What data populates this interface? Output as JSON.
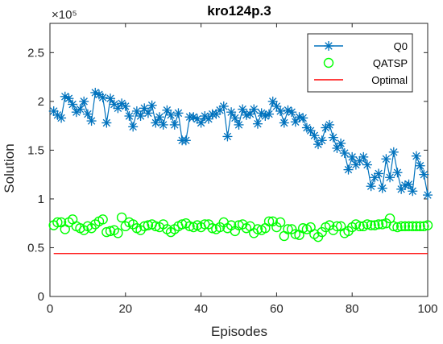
{
  "chart_data": {
    "type": "scatter",
    "title": "kro124p.3",
    "xlabel": "Episodes",
    "ylabel": "Solution",
    "exponent_label": "×10⁵",
    "xlim": [
      0,
      100
    ],
    "ylim": [
      0,
      2.8
    ],
    "xticks": [
      0,
      20,
      40,
      60,
      80,
      100
    ],
    "yticks": [
      0,
      0.5,
      1,
      1.5,
      2,
      2.5
    ],
    "xtick_labels": [
      "0",
      "20",
      "40",
      "60",
      "80",
      "100"
    ],
    "ytick_labels": [
      "0",
      "0.5",
      "1",
      "1.5",
      "2",
      "2.5"
    ],
    "grid": false,
    "legend_position": "top-right",
    "x": [
      1,
      2,
      3,
      4,
      5,
      6,
      7,
      8,
      9,
      10,
      11,
      12,
      13,
      14,
      15,
      16,
      17,
      18,
      19,
      20,
      21,
      22,
      23,
      24,
      25,
      26,
      27,
      28,
      29,
      30,
      31,
      32,
      33,
      34,
      35,
      36,
      37,
      38,
      39,
      40,
      41,
      42,
      43,
      44,
      45,
      46,
      47,
      48,
      49,
      50,
      51,
      52,
      53,
      54,
      55,
      56,
      57,
      58,
      59,
      60,
      61,
      62,
      63,
      64,
      65,
      66,
      67,
      68,
      69,
      70,
      71,
      72,
      73,
      74,
      75,
      76,
      77,
      78,
      79,
      80,
      81,
      82,
      83,
      84,
      85,
      86,
      87,
      88,
      89,
      90,
      91,
      92,
      93,
      94,
      95,
      96,
      97,
      98,
      99,
      100
    ],
    "series": [
      {
        "name": "Q0",
        "marker": "asterisk",
        "line": true,
        "color": "#0072BD",
        "values": [
          1.9,
          1.86,
          1.83,
          2.05,
          2.03,
          1.97,
          1.89,
          1.92,
          2.0,
          1.87,
          1.8,
          2.09,
          2.07,
          2.04,
          1.78,
          2.03,
          1.97,
          1.93,
          1.98,
          1.95,
          1.85,
          1.74,
          1.9,
          1.85,
          1.93,
          1.88,
          1.96,
          1.78,
          1.84,
          1.76,
          1.91,
          1.86,
          1.76,
          1.88,
          1.6,
          1.6,
          1.84,
          1.84,
          1.82,
          1.78,
          1.85,
          1.82,
          1.87,
          1.87,
          1.91,
          1.95,
          1.64,
          1.89,
          1.83,
          1.76,
          1.92,
          1.86,
          1.87,
          1.92,
          1.77,
          1.88,
          1.85,
          1.87,
          2.0,
          1.95,
          1.9,
          1.78,
          1.91,
          1.89,
          1.79,
          1.84,
          1.83,
          1.73,
          1.7,
          1.65,
          1.56,
          1.6,
          1.73,
          1.76,
          1.63,
          1.52,
          1.57,
          1.47,
          1.3,
          1.43,
          1.35,
          1.39,
          1.43,
          1.35,
          1.13,
          1.22,
          1.26,
          1.11,
          1.41,
          1.22,
          1.48,
          1.27,
          1.1,
          1.14,
          1.15,
          1.08,
          1.44,
          1.34,
          1.25,
          1.04
        ]
      },
      {
        "name": "QATSP",
        "marker": "circle",
        "line": false,
        "color": "#00FF00",
        "values": [
          0.73,
          0.76,
          0.76,
          0.69,
          0.76,
          0.79,
          0.72,
          0.7,
          0.68,
          0.72,
          0.7,
          0.74,
          0.77,
          0.79,
          0.66,
          0.67,
          0.68,
          0.65,
          0.81,
          0.72,
          0.76,
          0.74,
          0.7,
          0.68,
          0.72,
          0.73,
          0.74,
          0.72,
          0.71,
          0.74,
          0.69,
          0.66,
          0.69,
          0.72,
          0.74,
          0.75,
          0.72,
          0.71,
          0.73,
          0.71,
          0.74,
          0.74,
          0.7,
          0.69,
          0.71,
          0.76,
          0.7,
          0.73,
          0.67,
          0.73,
          0.74,
          0.7,
          0.72,
          0.65,
          0.69,
          0.68,
          0.7,
          0.77,
          0.77,
          0.71,
          0.76,
          0.62,
          0.69,
          0.69,
          0.64,
          0.63,
          0.7,
          0.69,
          0.71,
          0.64,
          0.61,
          0.66,
          0.71,
          0.73,
          0.68,
          0.72,
          0.72,
          0.65,
          0.67,
          0.71,
          0.74,
          0.72,
          0.72,
          0.74,
          0.73,
          0.73,
          0.74,
          0.74,
          0.75,
          0.8,
          0.72,
          0.71,
          0.72,
          0.72,
          0.72,
          0.72,
          0.72,
          0.72,
          0.72,
          0.73
        ]
      },
      {
        "name": "Optimal",
        "marker": "none",
        "line": true,
        "color": "#FF0000",
        "values": [
          0.44,
          0.44,
          0.44,
          0.44,
          0.44,
          0.44,
          0.44,
          0.44,
          0.44,
          0.44,
          0.44,
          0.44,
          0.44,
          0.44,
          0.44,
          0.44,
          0.44,
          0.44,
          0.44,
          0.44,
          0.44,
          0.44,
          0.44,
          0.44,
          0.44,
          0.44,
          0.44,
          0.44,
          0.44,
          0.44,
          0.44,
          0.44,
          0.44,
          0.44,
          0.44,
          0.44,
          0.44,
          0.44,
          0.44,
          0.44,
          0.44,
          0.44,
          0.44,
          0.44,
          0.44,
          0.44,
          0.44,
          0.44,
          0.44,
          0.44,
          0.44,
          0.44,
          0.44,
          0.44,
          0.44,
          0.44,
          0.44,
          0.44,
          0.44,
          0.44,
          0.44,
          0.44,
          0.44,
          0.44,
          0.44,
          0.44,
          0.44,
          0.44,
          0.44,
          0.44,
          0.44,
          0.44,
          0.44,
          0.44,
          0.44,
          0.44,
          0.44,
          0.44,
          0.44,
          0.44,
          0.44,
          0.44,
          0.44,
          0.44,
          0.44,
          0.44,
          0.44,
          0.44,
          0.44,
          0.44,
          0.44,
          0.44,
          0.44,
          0.44,
          0.44,
          0.44,
          0.44,
          0.44,
          0.44,
          0.44
        ]
      }
    ]
  }
}
